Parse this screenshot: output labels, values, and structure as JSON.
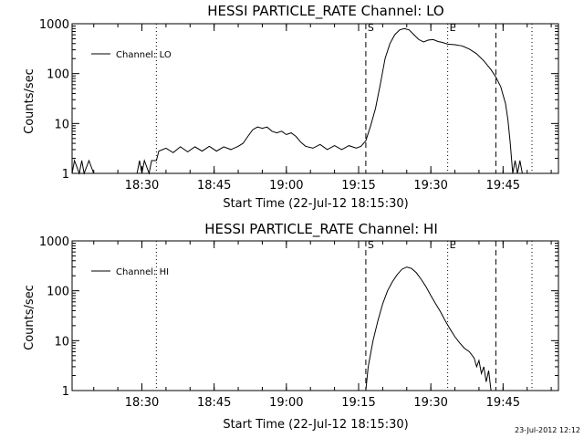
{
  "timestamp": "23-Jul-2012 12:12",
  "chart_data": [
    {
      "type": "line",
      "title": "HESSI PARTICLE_RATE Channel: LO",
      "xlabel": "Start Time (22-Jul-12 18:15:30)",
      "ylabel": "Counts/sec",
      "xlim": [
        "18:15:30",
        "19:56:30"
      ],
      "ylim": [
        1,
        1000
      ],
      "yscale": "log",
      "xticks": [
        "18:30",
        "18:45",
        "19:00",
        "19:15",
        "19:30",
        "19:45"
      ],
      "yticks": [
        "1",
        "10",
        "100",
        "1000"
      ],
      "legend": {
        "position": "top-left",
        "entries": [
          "Channel: LO"
        ]
      },
      "vlines": [
        {
          "time": "18:33:00",
          "style": "dotted"
        },
        {
          "time": "19:16:30",
          "style": "dashed",
          "label": "S"
        },
        {
          "time": "19:33:30",
          "style": "dotted",
          "label": "E"
        },
        {
          "time": "19:43:30",
          "style": "dashed"
        },
        {
          "time": "19:51:00",
          "style": "dotted"
        }
      ],
      "series": [
        {
          "name": "Channel: LO",
          "points": [
            [
              "18:15:30",
              1
            ],
            [
              "18:16:00",
              1.8
            ],
            [
              "18:17:00",
              1
            ],
            [
              "18:17:30",
              1.8
            ],
            [
              "18:18:00",
              1
            ],
            [
              "18:19:00",
              1.8
            ],
            [
              "18:20:00",
              1
            ],
            [
              "18:29:00",
              1
            ],
            [
              "18:29:30",
              1.8
            ],
            [
              "18:30:00",
              1
            ],
            [
              "18:30:30",
              1.8
            ],
            [
              "18:31:30",
              1
            ],
            [
              "18:32:00",
              1.8
            ],
            [
              "18:33:00",
              1.8
            ],
            [
              "18:33:30",
              2.8
            ],
            [
              "18:35:00",
              3.2
            ],
            [
              "18:36:30",
              2.6
            ],
            [
              "18:38:00",
              3.4
            ],
            [
              "18:39:30",
              2.7
            ],
            [
              "18:41:00",
              3.4
            ],
            [
              "18:42:30",
              2.8
            ],
            [
              "18:44:00",
              3.5
            ],
            [
              "18:45:30",
              2.8
            ],
            [
              "18:47:00",
              3.4
            ],
            [
              "18:48:30",
              3.0
            ],
            [
              "18:50:00",
              3.5
            ],
            [
              "18:51:00",
              4.0
            ],
            [
              "18:52:00",
              5.5
            ],
            [
              "18:53:00",
              7.5
            ],
            [
              "18:54:00",
              8.5
            ],
            [
              "18:55:00",
              8.0
            ],
            [
              "18:56:00",
              8.5
            ],
            [
              "18:57:00",
              7.0
            ],
            [
              "18:58:00",
              6.5
            ],
            [
              "18:59:00",
              7.0
            ],
            [
              "19:00:00",
              6.0
            ],
            [
              "19:01:00",
              6.5
            ],
            [
              "19:02:00",
              5.5
            ],
            [
              "19:03:00",
              4.2
            ],
            [
              "19:04:00",
              3.5
            ],
            [
              "19:05:30",
              3.2
            ],
            [
              "19:07:00",
              3.8
            ],
            [
              "19:08:30",
              3.0
            ],
            [
              "19:10:00",
              3.6
            ],
            [
              "19:11:30",
              3.0
            ],
            [
              "19:13:00",
              3.6
            ],
            [
              "19:14:30",
              3.2
            ],
            [
              "19:15:30",
              3.5
            ],
            [
              "19:16:30",
              4.5
            ],
            [
              "19:17:30",
              9
            ],
            [
              "19:18:30",
              20
            ],
            [
              "19:19:30",
              60
            ],
            [
              "19:20:30",
              200
            ],
            [
              "19:21:30",
              400
            ],
            [
              "19:22:30",
              600
            ],
            [
              "19:23:30",
              750
            ],
            [
              "19:24:30",
              800
            ],
            [
              "19:25:30",
              750
            ],
            [
              "19:26:30",
              600
            ],
            [
              "19:27:30",
              480
            ],
            [
              "19:28:30",
              430
            ],
            [
              "19:29:30",
              470
            ],
            [
              "19:30:30",
              480
            ],
            [
              "19:31:30",
              440
            ],
            [
              "19:32:30",
              420
            ],
            [
              "19:33:30",
              390
            ],
            [
              "19:35:00",
              380
            ],
            [
              "19:36:30",
              360
            ],
            [
              "19:38:00",
              310
            ],
            [
              "19:39:30",
              250
            ],
            [
              "19:41:00",
              180
            ],
            [
              "19:42:30",
              120
            ],
            [
              "19:43:30",
              85
            ],
            [
              "19:44:30",
              55
            ],
            [
              "19:45:30",
              25
            ],
            [
              "19:46:00",
              12
            ],
            [
              "19:46:30",
              4
            ],
            [
              "19:47:00",
              1
            ],
            [
              "19:47:30",
              1.8
            ],
            [
              "19:48:00",
              1
            ],
            [
              "19:48:30",
              1.8
            ],
            [
              "19:49:00",
              1
            ]
          ]
        }
      ]
    },
    {
      "type": "line",
      "title": "HESSI PARTICLE_RATE Channel: HI",
      "xlabel": "Start Time (22-Jul-12 18:15:30)",
      "ylabel": "Counts/sec",
      "xlim": [
        "18:15:30",
        "19:56:30"
      ],
      "ylim": [
        1,
        1000
      ],
      "yscale": "log",
      "xticks": [
        "18:30",
        "18:45",
        "19:00",
        "19:15",
        "19:30",
        "19:45"
      ],
      "yticks": [
        "1",
        "10",
        "100",
        "1000"
      ],
      "legend": {
        "position": "top-left",
        "entries": [
          "Channel: HI"
        ]
      },
      "vlines": [
        {
          "time": "18:33:00",
          "style": "dotted"
        },
        {
          "time": "19:16:30",
          "style": "dashed",
          "label": "S"
        },
        {
          "time": "19:33:30",
          "style": "dotted",
          "label": "E"
        },
        {
          "time": "19:43:30",
          "style": "dashed"
        },
        {
          "time": "19:51:00",
          "style": "dotted"
        }
      ],
      "series": [
        {
          "name": "Channel: HI",
          "points": [
            [
              "19:16:30",
              1
            ],
            [
              "19:17:00",
              3
            ],
            [
              "19:18:00",
              10
            ],
            [
              "19:19:00",
              25
            ],
            [
              "19:20:00",
              55
            ],
            [
              "19:21:00",
              100
            ],
            [
              "19:22:00",
              150
            ],
            [
              "19:23:00",
              210
            ],
            [
              "19:24:00",
              270
            ],
            [
              "19:25:00",
              300
            ],
            [
              "19:26:00",
              280
            ],
            [
              "19:27:00",
              230
            ],
            [
              "19:28:00",
              170
            ],
            [
              "19:29:00",
              120
            ],
            [
              "19:30:00",
              80
            ],
            [
              "19:31:00",
              55
            ],
            [
              "19:32:00",
              38
            ],
            [
              "19:33:00",
              25
            ],
            [
              "19:34:00",
              17
            ],
            [
              "19:35:00",
              12
            ],
            [
              "19:36:00",
              9
            ],
            [
              "19:37:00",
              7
            ],
            [
              "19:38:00",
              6
            ],
            [
              "19:39:00",
              4.5
            ],
            [
              "19:39:30",
              3
            ],
            [
              "19:40:00",
              4
            ],
            [
              "19:40:30",
              2.2
            ],
            [
              "19:41:00",
              3
            ],
            [
              "19:41:30",
              1.5
            ],
            [
              "19:42:00",
              2.5
            ],
            [
              "19:42:30",
              1
            ]
          ]
        }
      ]
    }
  ]
}
